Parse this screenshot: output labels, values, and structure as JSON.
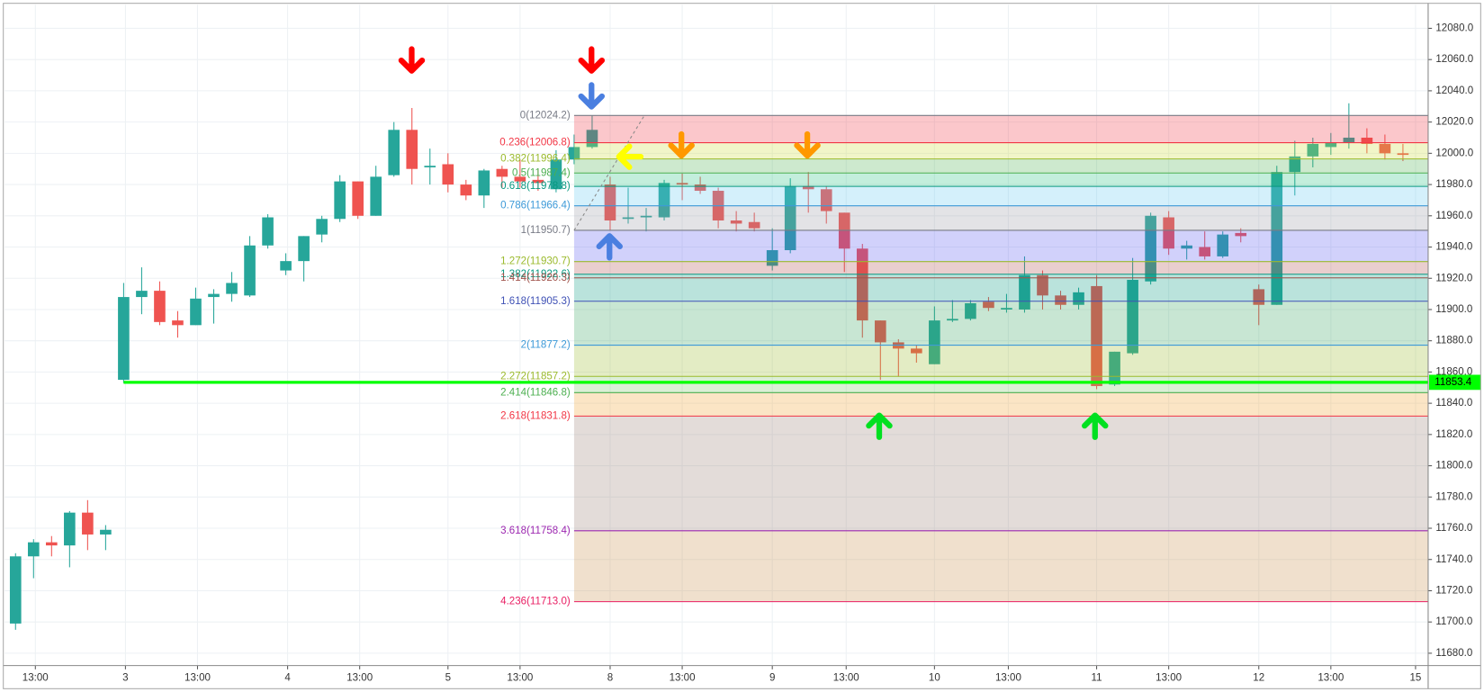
{
  "chart_data": {
    "type": "candlestick",
    "xlim": [
      -0.6,
      78.4
    ],
    "ylim": [
      11672.1,
      12095.1
    ],
    "up_color": "#26a69a",
    "down_color": "#ef5350",
    "grid": true,
    "xticks": [
      {
        "value": 1.1,
        "label": "13:00"
      },
      {
        "value": 6.1,
        "label": "3"
      },
      {
        "value": 10.1,
        "label": "13:00"
      },
      {
        "value": 15.1,
        "label": "4"
      },
      {
        "value": 19.1,
        "label": "13:00"
      },
      {
        "value": 24,
        "label": "5"
      },
      {
        "value": 28,
        "label": "13:00"
      },
      {
        "value": 33,
        "label": "8"
      },
      {
        "value": 37,
        "label": "13:00"
      },
      {
        "value": 42,
        "label": "9"
      },
      {
        "value": 46.1,
        "label": "13:00"
      },
      {
        "value": 51,
        "label": "10"
      },
      {
        "value": 55.1,
        "label": "13:00"
      },
      {
        "value": 60,
        "label": "11"
      },
      {
        "value": 64,
        "label": "13:00"
      },
      {
        "value": 69,
        "label": "12"
      },
      {
        "value": 73,
        "label": "13:00"
      },
      {
        "value": 77.7,
        "label": "15"
      }
    ],
    "yticks": [
      {
        "value": 12080,
        "label": "12080.0"
      },
      {
        "value": 12060,
        "label": "12060.0"
      },
      {
        "value": 12040,
        "label": "12040.0"
      },
      {
        "value": 12020,
        "label": "12020.0"
      },
      {
        "value": 12000,
        "label": "12000.0"
      },
      {
        "value": 11980,
        "label": "11980.0"
      },
      {
        "value": 11960,
        "label": "11960.0"
      },
      {
        "value": 11940,
        "label": "11940.0"
      },
      {
        "value": 11920,
        "label": "11920.0"
      },
      {
        "value": 11900,
        "label": "11900.0"
      },
      {
        "value": 11880,
        "label": "11880.0"
      },
      {
        "value": 11860,
        "label": "11860.0"
      },
      {
        "value": 11840,
        "label": "11840.0"
      },
      {
        "value": 11820,
        "label": "11820.0"
      },
      {
        "value": 11800,
        "label": "11800.0"
      },
      {
        "value": 11780,
        "label": "11780.0"
      },
      {
        "value": 11760,
        "label": "11760.0"
      },
      {
        "value": 11740,
        "label": "11740.0"
      },
      {
        "value": 11720,
        "label": "11720.0"
      },
      {
        "value": 11700,
        "label": "11700.0"
      },
      {
        "value": 11680,
        "label": "11680.0"
      }
    ],
    "candles": {
      "open": [
        11699,
        11742,
        11751,
        11749,
        11770,
        11756,
        11855,
        11908,
        11912,
        11893,
        11890,
        11908,
        11910,
        11909,
        11941,
        11925,
        11931,
        11948,
        11958,
        11982,
        11960,
        11986,
        12015,
        11991,
        11993,
        11980,
        11973,
        11990,
        11985,
        11983,
        11977,
        11996,
        12004,
        11980,
        11958,
        11959,
        11959,
        11981,
        11980,
        11976,
        11957,
        11956,
        11928,
        11938,
        11979,
        11977,
        11962,
        11939,
        11893,
        11879,
        11875,
        11865,
        11893,
        11894,
        11905,
        11900,
        11900,
        11922,
        11909,
        11903,
        11915,
        11852,
        11872,
        11918,
        11959,
        11939,
        11940,
        11934,
        11949,
        11913,
        11903,
        11988,
        11998,
        12004,
        12007,
        12010,
        12006,
        12000
      ],
      "high": [
        11744,
        11753,
        11755,
        11771,
        11778,
        11762,
        11917,
        11927,
        11918,
        11899,
        11914,
        11913,
        11924,
        11947,
        11961,
        11936,
        11947,
        11960,
        11986,
        11982,
        11992,
        12020,
        12029,
        12003,
        12000,
        11983,
        11990,
        11992,
        11996,
        11990,
        12002,
        12012,
        12024.2,
        11985,
        11978,
        11965,
        11983,
        11987,
        11985,
        11978,
        11963,
        11962,
        11952,
        11984,
        11988,
        11979,
        11962,
        11942,
        11893,
        11881,
        11877,
        11902,
        11906,
        11906,
        11908,
        11910,
        11934,
        11925,
        11912,
        11914,
        11922,
        11873,
        11933,
        11962,
        11963,
        11944,
        11950,
        11950,
        11952,
        11916,
        11992,
        12008,
        12010,
        12013,
        12032,
        12016,
        12012,
        12006
      ],
      "low": [
        11695,
        11728,
        11742,
        11735,
        11746,
        11746,
        11853,
        11897,
        11890,
        11882,
        11890,
        11891,
        11905,
        11908,
        11939,
        11922,
        11918,
        11943,
        11956,
        11958,
        11960,
        11985,
        11980,
        11980,
        11975,
        11970,
        11965,
        11978,
        11978,
        11976,
        11975,
        11993,
        12003,
        11950.7,
        11955,
        11950,
        11957,
        11970,
        11974,
        11952,
        11950,
        11950,
        11925,
        11936,
        11962,
        11955,
        11924,
        11882,
        11855,
        11857,
        11866,
        11865,
        11892,
        11893,
        11899,
        11898,
        11898,
        11900,
        11900,
        11900,
        11849,
        11851,
        11871,
        11916,
        11935,
        11932,
        11932,
        11933,
        11943,
        11890,
        11903,
        11973,
        11991,
        11999,
        12003,
        12000,
        11996,
        11995
      ],
      "close": [
        11742,
        11751,
        11749,
        11770,
        11756,
        11759,
        11908,
        11912,
        11892,
        11890,
        11907,
        11910,
        11917,
        11941,
        11959,
        11931,
        11947,
        11958,
        11982,
        11960,
        11985,
        12015,
        11990,
        11992,
        11980,
        11973,
        11989,
        11985,
        11982,
        11981,
        11996,
        12004,
        12015,
        11957,
        11959,
        11960,
        11981,
        11980,
        11976,
        11957,
        11955,
        11952,
        11938,
        11979,
        11977,
        11963,
        11939,
        11893,
        11879,
        11875,
        11872,
        11893,
        11894,
        11904,
        11901,
        11901,
        11922,
        11909,
        11903,
        11911,
        11851,
        11873,
        11919,
        11960,
        11939,
        11941,
        11934,
        11948,
        11947,
        11903,
        11988,
        11998,
        12006,
        12007,
        12010,
        12006,
        12000,
        11999
      ]
    },
    "fibonacci": {
      "start_index": 31,
      "levels": [
        {
          "label": "0(12024.2)",
          "price": 12024.2,
          "color": "#787b86",
          "fill": "#f23645"
        },
        {
          "label": "0.236(12006.8)",
          "price": 12006.8,
          "color": "#f23645",
          "fill": "#cddc39"
        },
        {
          "label": "0.382(11996.4)",
          "price": 11996.4,
          "color": "#9bba2c",
          "fill": "#4caf50"
        },
        {
          "label": "0.5(11987.4)",
          "price": 11987.4,
          "color": "#4caf50",
          "fill": "#26c281"
        },
        {
          "label": "0.618(11978.8)",
          "price": 11978.8,
          "color": "#089981",
          "fill": "#64c8f0"
        },
        {
          "label": "0.786(11966.4)",
          "price": 11966.4,
          "color": "#3d9ad8",
          "fill": "#9a9ca6"
        },
        {
          "label": "1(11950.7)",
          "price": 11950.7,
          "color": "#787b86",
          "fill": "#5b5bef"
        },
        {
          "label": "1.272(11930.7)",
          "price": 11930.7,
          "color": "#9bba2c",
          "fill": "#b05050"
        },
        {
          "label": "1.382(11922.6)",
          "price": 11922.6,
          "color": "#089981",
          "fill": "#089981"
        },
        {
          "label": "1.414(11920.3)",
          "price": 11920.3,
          "color": "#a0524a",
          "fill": "#089981"
        },
        {
          "label": "1.618(11905.3)",
          "price": 11905.3,
          "color": "#3f51b5",
          "fill": "#3aa660"
        },
        {
          "label": "2(11877.2)",
          "price": 11877.2,
          "color": "#3d9ad8",
          "fill": "#9bba2c"
        },
        {
          "label": "2.272(11857.2)",
          "price": 11857.2,
          "color": "#9bba2c",
          "fill": "#7cc46a"
        },
        {
          "label": "2.414(11846.8)",
          "price": 11846.8,
          "color": "#4caf50",
          "fill": "#f0a030"
        },
        {
          "label": "2.618(11831.8)",
          "price": 11831.8,
          "color": "#f23645",
          "fill": "#9a8078"
        },
        {
          "label": "3.618(11758.4)",
          "price": 11758.4,
          "color": "#9c27b0",
          "fill": "#c8904a"
        },
        {
          "label": "4.236(11713.0)",
          "price": 11713.0,
          "color": "#e91e63"
        }
      ]
    },
    "horizontal_line": {
      "price": 11853.4,
      "start_index": 6,
      "color": "#00ff00"
    }
  }
}
